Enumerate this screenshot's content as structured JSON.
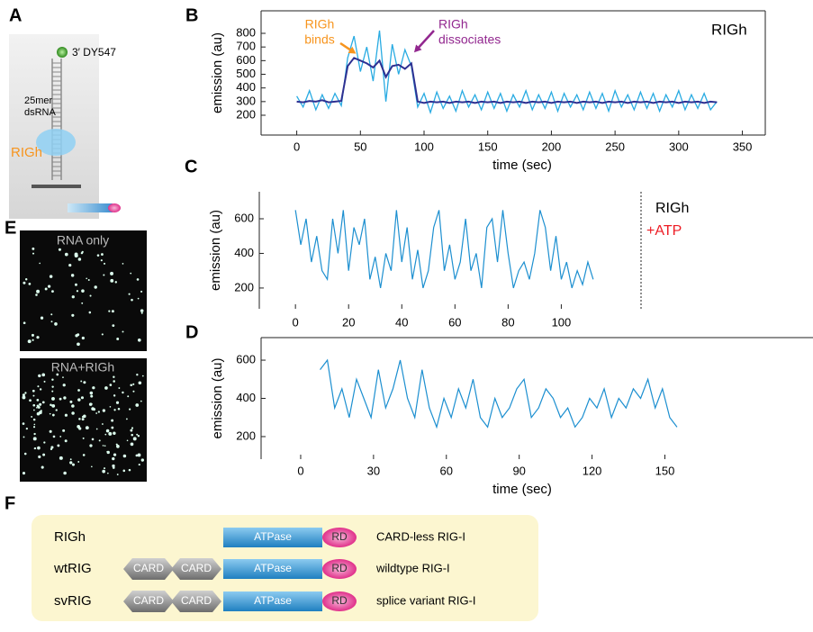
{
  "panel_labels": [
    "A",
    "B",
    "C",
    "D",
    "E",
    "F"
  ],
  "diagram_a": {
    "dye": "3′ DY547",
    "rna": [
      "25mer",
      "dsRNA"
    ],
    "protein": "RIGh"
  },
  "images_e": [
    "RNA only",
    "RNA+RIGh"
  ],
  "domains_f": [
    {
      "name": "RIGh",
      "domains": [
        "ATPase",
        "RD"
      ],
      "description": "CARD-less RIG-I"
    },
    {
      "name": "wtRIG",
      "domains": [
        "CARD",
        "CARD",
        "ATPase",
        "RD"
      ],
      "description": "wildtype RIG-I"
    },
    {
      "name": "svRIG",
      "domains": [
        "CARD",
        "CARD",
        "ATPase",
        "RD"
      ],
      "description": "splice variant RIG-I"
    }
  ],
  "chart_data": [
    {
      "type": "line",
      "label": "RIGh",
      "xlabel": "time (sec)",
      "ylabel": "emission (au)",
      "annotations": [
        {
          "lines": [
            "RIGh",
            "binds"
          ],
          "color": "#f7941d"
        },
        {
          "lines": [
            "RIGh",
            "dissociates"
          ],
          "color": "#92278f"
        }
      ],
      "x": [
        0,
        5,
        10,
        15,
        20,
        25,
        30,
        35,
        40,
        45,
        50,
        55,
        60,
        65,
        70,
        75,
        80,
        85,
        90,
        95,
        100,
        105,
        110,
        115,
        120,
        125,
        130,
        135,
        140,
        145,
        150,
        155,
        160,
        165,
        170,
        175,
        180,
        185,
        190,
        195,
        200,
        205,
        210,
        215,
        220,
        225,
        230,
        235,
        240,
        245,
        250,
        255,
        260,
        265,
        270,
        275,
        280,
        285,
        290,
        295,
        300,
        305,
        310,
        315,
        320,
        325,
        330
      ],
      "series": [
        {
          "color": "#29abe2",
          "values": [
            340,
            260,
            380,
            240,
            350,
            250,
            360,
            270,
            620,
            780,
            520,
            700,
            450,
            820,
            300,
            720,
            500,
            680,
            560,
            260,
            360,
            220,
            370,
            250,
            340,
            230,
            380,
            260,
            350,
            240,
            370,
            250,
            360,
            230,
            350,
            260,
            380,
            240,
            350,
            250,
            370,
            230,
            360,
            260,
            350,
            240,
            370,
            250,
            360,
            230,
            380,
            260,
            350,
            240,
            370,
            250,
            360,
            230,
            350,
            260,
            380,
            240,
            350,
            250,
            360,
            240,
            300
          ]
        },
        {
          "color": "#2e3192",
          "values": [
            300,
            295,
            305,
            300,
            310,
            295,
            300,
            305,
            560,
            620,
            600,
            580,
            550,
            600,
            480,
            560,
            570,
            540,
            580,
            300,
            290,
            300,
            295,
            300,
            290,
            300,
            295,
            300,
            290,
            300,
            295,
            300,
            290,
            300,
            295,
            300,
            290,
            300,
            295,
            300,
            290,
            300,
            295,
            300,
            290,
            300,
            295,
            300,
            290,
            300,
            295,
            300,
            290,
            300,
            295,
            300,
            290,
            300,
            295,
            300,
            290,
            300,
            295,
            300,
            290,
            300,
            295
          ]
        }
      ],
      "xlim": [
        -28,
        368
      ],
      "xticks": [
        0,
        50,
        100,
        150,
        200,
        250,
        300,
        350
      ],
      "ylim": [
        55,
        965
      ],
      "yticks": [
        200,
        300,
        400,
        500,
        600,
        700,
        800
      ]
    },
    {
      "type": "line",
      "label": "RIGh",
      "label2": "+ATP",
      "label2_color": "#ed1c24",
      "ylabel": "emission (au)",
      "x": [
        0,
        2,
        4,
        6,
        8,
        10,
        12,
        14,
        16,
        18,
        20,
        22,
        24,
        26,
        28,
        30,
        32,
        34,
        36,
        38,
        40,
        42,
        44,
        46,
        48,
        50,
        52,
        54,
        56,
        58,
        60,
        62,
        64,
        66,
        68,
        70,
        72,
        74,
        76,
        78,
        80,
        82,
        84,
        86,
        88,
        90,
        92,
        94,
        96,
        98,
        100,
        102,
        104,
        106,
        108,
        110,
        112
      ],
      "series": [
        {
          "color": "#1c8fd0",
          "values": [
            650,
            450,
            600,
            350,
            500,
            300,
            250,
            600,
            400,
            650,
            300,
            550,
            450,
            600,
            250,
            380,
            200,
            400,
            300,
            650,
            350,
            550,
            250,
            420,
            200,
            300,
            550,
            650,
            300,
            450,
            250,
            350,
            600,
            300,
            400,
            200,
            550,
            600,
            350,
            650,
            400,
            200,
            300,
            350,
            250,
            400,
            650,
            550,
            300,
            500,
            250,
            350,
            200,
            300,
            220,
            350,
            250
          ]
        }
      ],
      "xlim": [
        -13.6,
        130
      ],
      "xticks": [
        0,
        20,
        40,
        60,
        80,
        100
      ],
      "ylim": [
        80,
        756
      ],
      "yticks": [
        200,
        400,
        600
      ]
    },
    {
      "type": "line",
      "xlabel": "time (sec)",
      "ylabel": "emission (au)",
      "x": [
        8,
        11,
        14,
        17,
        20,
        23,
        26,
        29,
        32,
        35,
        38,
        41,
        44,
        47,
        50,
        53,
        56,
        59,
        62,
        65,
        68,
        71,
        74,
        77,
        80,
        83,
        86,
        89,
        92,
        95,
        98,
        101,
        104,
        107,
        110,
        113,
        116,
        119,
        122,
        125,
        128,
        131,
        134,
        137,
        140,
        143,
        146,
        149,
        152,
        155
      ],
      "series": [
        {
          "color": "#1c8fd0",
          "values": [
            550,
            600,
            350,
            450,
            300,
            500,
            400,
            300,
            550,
            350,
            450,
            600,
            400,
            300,
            550,
            350,
            250,
            400,
            300,
            450,
            350,
            500,
            300,
            250,
            400,
            300,
            350,
            450,
            500,
            300,
            350,
            450,
            400,
            300,
            350,
            250,
            300,
            400,
            350,
            450,
            300,
            400,
            350,
            450,
            400,
            500,
            350,
            450,
            300,
            250
          ]
        }
      ],
      "xlim": [
        -16.3,
        211
      ],
      "xticks": [
        0,
        30,
        60,
        90,
        120,
        150
      ],
      "ylim": [
        82,
        718
      ],
      "yticks": [
        200,
        400,
        600
      ]
    }
  ]
}
